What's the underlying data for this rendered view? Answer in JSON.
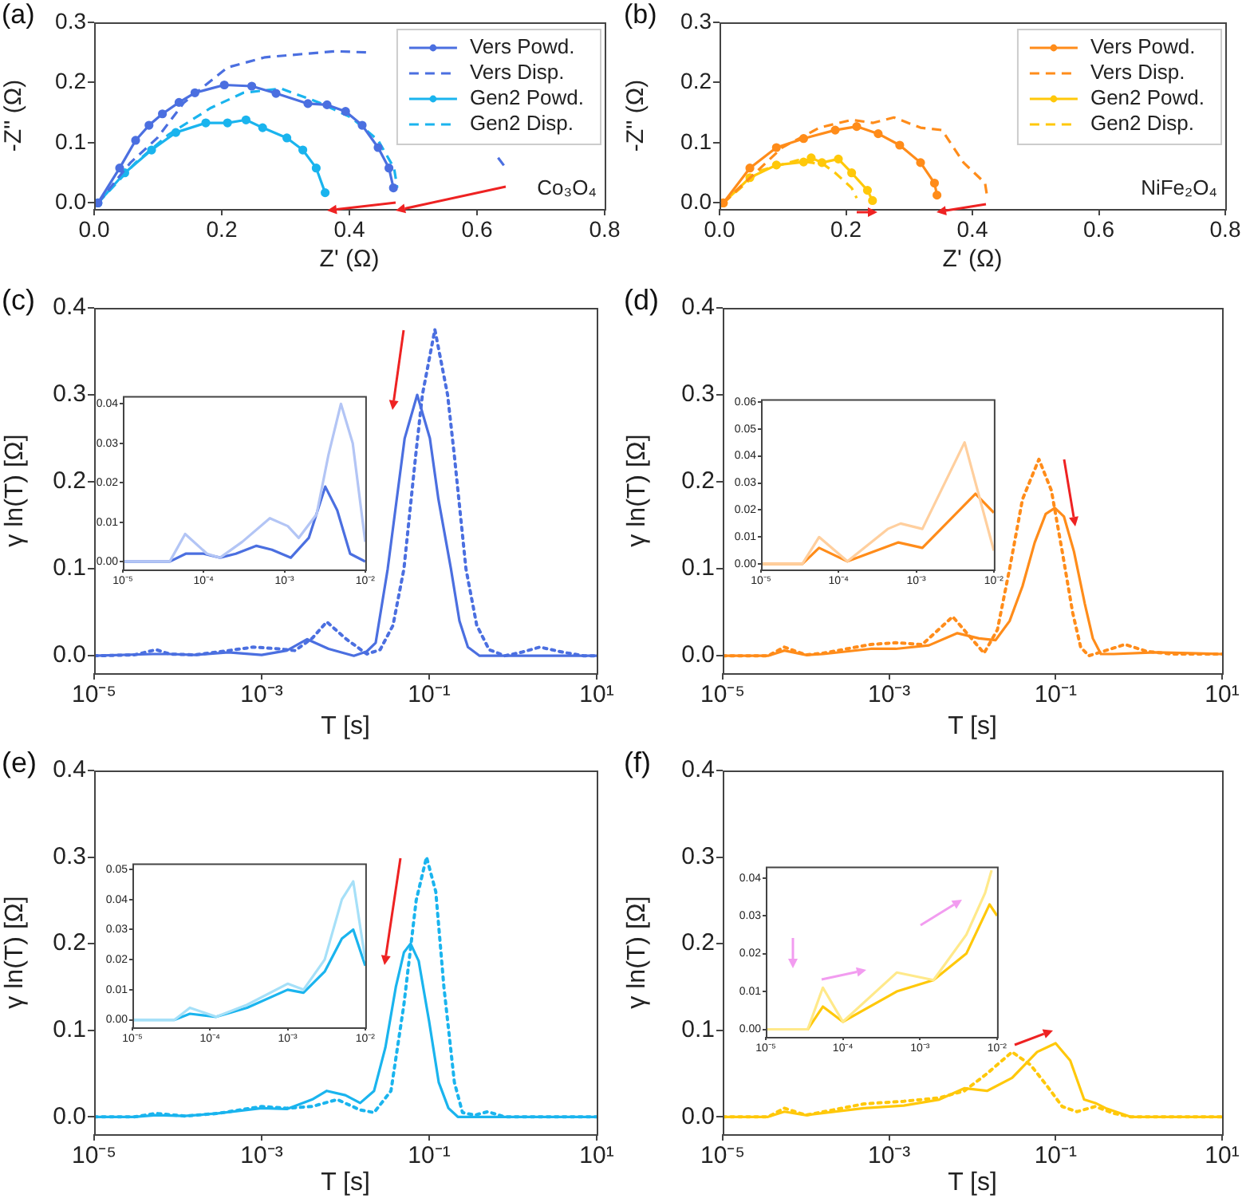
{
  "chart_data": [
    {
      "type": "line",
      "title": "(a)",
      "xlabel": "Z' (Ω)",
      "ylabel": "-Z'' (Ω)",
      "xlim": [
        0,
        0.8
      ],
      "ylim": [
        -0.01,
        0.3
      ],
      "xticks": [
        {
          "value": 0,
          "label": "0.0"
        },
        {
          "value": 0.2,
          "label": "0.2"
        },
        {
          "value": 0.4,
          "label": "0.4"
        },
        {
          "value": 0.6,
          "label": "0.6"
        },
        {
          "value": 0.8,
          "label": "0.8"
        }
      ],
      "yticks": [
        {
          "value": 0,
          "label": "0.0"
        },
        {
          "value": 0.1,
          "label": "0.1"
        },
        {
          "value": 0.2,
          "label": "0.2"
        },
        {
          "value": 0.3,
          "label": "0.3"
        }
      ],
      "grid": false,
      "legend": "top right",
      "annotations": [
        "Co₃O₄"
      ],
      "series": [
        {
          "name": "Vers Powd.",
          "color": "#4b6fe0",
          "marker": "circle",
          "line_style": "solid",
          "x": [
            0.006,
            0.04,
            0.065,
            0.086,
            0.107,
            0.133,
            0.158,
            0.204,
            0.247,
            0.285,
            0.335,
            0.365,
            0.394,
            0.42,
            0.445,
            0.462,
            0.469
          ],
          "values": [
            0,
            0.058,
            0.104,
            0.129,
            0.148,
            0.167,
            0.183,
            0.196,
            0.194,
            0.182,
            0.165,
            0.163,
            0.152,
            0.129,
            0.092,
            0.058,
            0.025
          ]
        },
        {
          "name": "Vers Disp.",
          "color": "#4b6fe0",
          "marker": "none",
          "line_style": "dashed",
          "x": [
            0.006,
            0.057,
            0.099,
            0.141,
            0.209,
            0.268,
            0.378,
            0.428,
            0.487,
            0.546,
            0.633,
            0.648
          ],
          "values": [
            0,
            0.067,
            0.108,
            0.167,
            0.225,
            0.242,
            0.252,
            0.25,
            null,
            null,
            0.075,
            0.054
          ]
        },
        {
          "name": "Gen2 Powd.",
          "color": "#1ab4ee",
          "marker": "circle",
          "line_style": "solid",
          "x": [
            0.006,
            0.048,
            0.09,
            0.128,
            0.175,
            0.209,
            0.238,
            0.264,
            0.302,
            0.327,
            0.348,
            0.362
          ],
          "values": [
            0,
            0.05,
            0.088,
            0.117,
            0.133,
            0.133,
            0.138,
            0.125,
            0.108,
            0.088,
            0.058,
            0.017
          ]
        },
        {
          "name": "Gen2 Disp.",
          "color": "#1ab4ee",
          "marker": "none",
          "line_style": "dashed",
          "x": [
            0.006,
            0.065,
            0.116,
            0.183,
            0.234,
            0.293,
            0.352,
            0.403,
            0.445,
            0.47,
            0.475
          ],
          "values": [
            0,
            0.067,
            0.113,
            0.158,
            0.183,
            0.19,
            0.167,
            0.142,
            0.104,
            0.058,
            0.025
          ]
        }
      ]
    },
    {
      "type": "line",
      "title": "(b)",
      "xlabel": "Z' (Ω)",
      "ylabel": "-Z'' (Ω)",
      "xlim": [
        0,
        0.8
      ],
      "ylim": [
        -0.01,
        0.3
      ],
      "xticks": [
        {
          "value": 0,
          "label": "0.0"
        },
        {
          "value": 0.2,
          "label": "0.2"
        },
        {
          "value": 0.4,
          "label": "0.4"
        },
        {
          "value": 0.6,
          "label": "0.6"
        },
        {
          "value": 0.8,
          "label": "0.8"
        }
      ],
      "yticks": [
        {
          "value": 0,
          "label": "0.0"
        },
        {
          "value": 0.1,
          "label": "0.1"
        },
        {
          "value": 0.2,
          "label": "0.2"
        },
        {
          "value": 0.3,
          "label": "0.3"
        }
      ],
      "grid": false,
      "legend": "top right",
      "annotations": [
        "NiFe₂O₄"
      ],
      "series": [
        {
          "name": "Vers Powd.",
          "color": "#ff8c1a",
          "marker": "circle",
          "line_style": "solid",
          "x": [
            0.006,
            0.048,
            0.09,
            0.133,
            0.183,
            0.217,
            0.251,
            0.285,
            0.318,
            0.34,
            0.344
          ],
          "values": [
            0,
            0.058,
            0.092,
            0.107,
            0.121,
            0.127,
            0.115,
            0.096,
            0.067,
            0.033,
            0.013
          ]
        },
        {
          "name": "Vers Disp.",
          "color": "#ff8c1a",
          "marker": "none",
          "line_style": "dashed",
          "x": [
            0.006,
            0.099,
            0.158,
            0.209,
            0.243,
            0.276,
            0.318,
            0.352,
            0.386,
            0.42,
            0.423
          ],
          "values": [
            0,
            0.092,
            0.125,
            0.138,
            0.133,
            0.142,
            0.125,
            0.121,
            0.067,
            0.033,
            0.013
          ]
        },
        {
          "name": "Gen2 Powd.",
          "color": "#ffc80a",
          "marker": "circle",
          "line_style": "solid",
          "x": [
            0.006,
            0.048,
            0.09,
            0.133,
            0.145,
            0.162,
            0.188,
            0.209,
            0.234,
            0.242
          ],
          "values": [
            0,
            0.042,
            0.063,
            0.068,
            0.075,
            0.067,
            0.073,
            0.05,
            0.021,
            0.004
          ]
        },
        {
          "name": "Gen2 Disp.",
          "color": "#ffc80a",
          "marker": "none",
          "line_style": "dashed",
          "x": [
            0.006,
            0.065,
            0.124,
            0.166,
            0.183,
            0.209,
            0.217
          ],
          "values": [
            0,
            0.054,
            0.071,
            0.063,
            0.05,
            0.025,
            0.008
          ]
        }
      ]
    },
    {
      "type": "line",
      "title": "(c)",
      "xlabel": "T [s]",
      "ylabel": "γ ln(T) [Ω]",
      "log": "x",
      "xlim": [
        1e-05,
        10
      ],
      "ylim": [
        -0.02,
        0.4
      ],
      "xticks": [
        {
          "value": 1e-05,
          "label": "10⁻⁵"
        },
        {
          "value": 0.001,
          "label": "10⁻³"
        },
        {
          "value": 0.1,
          "label": "10⁻¹"
        },
        {
          "value": 10,
          "label": "10¹"
        }
      ],
      "yticks": [
        {
          "value": 0,
          "label": "0.0"
        },
        {
          "value": 0.1,
          "label": "0.1"
        },
        {
          "value": 0.2,
          "label": "0.2"
        },
        {
          "value": 0.3,
          "label": "0.3"
        },
        {
          "value": 0.4,
          "label": "0.4"
        }
      ],
      "grid": false,
      "series": [
        {
          "color": "#4b6fe0",
          "marker": "none",
          "line_style": "solid",
          "x": [
            1e-05,
            5e-05,
            8e-05,
            0.00016,
            0.0004,
            0.001,
            0.002,
            0.0035,
            0.0063,
            0.0126,
            0.018,
            0.023,
            0.032,
            0.041,
            0.051,
            0.072,
            0.102,
            0.129,
            0.182,
            0.23,
            0.29,
            0.4,
            10
          ],
          "values": [
            0,
            0.002,
            0.002,
            0.001,
            0.004,
            0.001,
            0.006,
            0.019,
            0.008,
            0,
            0.005,
            0.015,
            0.1,
            0.18,
            0.25,
            0.3,
            0.25,
            0.18,
            0.1,
            0.04,
            0.01,
            0,
            0
          ]
        },
        {
          "color": "#4b6fe0",
          "marker": "none",
          "line_style": "dotted",
          "x": [
            1e-05,
            3e-05,
            5.5e-05,
            8e-05,
            0.00016,
            0.0004,
            0.0008,
            0.0016,
            0.0025,
            0.004,
            0.006,
            0.01,
            0.018,
            0.026,
            0.037,
            0.05,
            0.069,
            0.083,
            0.117,
            0.166,
            0.2,
            0.275,
            0.37,
            0.52,
            0.8,
            1.26,
            2.1,
            4,
            7,
            10
          ],
          "values": [
            0,
            0.001,
            0.007,
            0.002,
            0.001,
            0.006,
            0.01,
            0.008,
            0.006,
            0.02,
            0.039,
            0.02,
            0.002,
            0.007,
            0.035,
            0.1,
            0.23,
            0.3,
            0.375,
            0.3,
            0.23,
            0.1,
            0.035,
            0.007,
            0,
            0.004,
            0.01,
            0.004,
            0,
            0
          ]
        }
      ]
    },
    {
      "type": "line",
      "log": "x",
      "xlim": [
        1e-05,
        0.01
      ],
      "ylim": [
        -0.002,
        0.042
      ],
      "xticks": [
        {
          "value": 1e-05,
          "label": "10⁻⁵"
        },
        {
          "value": 0.0001,
          "label": "10⁻⁴"
        },
        {
          "value": 0.001,
          "label": "10⁻³"
        },
        {
          "value": 0.01,
          "label": "10⁻²"
        }
      ],
      "yticks": [
        {
          "value": 0,
          "label": "0.00"
        },
        {
          "value": 0.01,
          "label": "0.01"
        },
        {
          "value": 0.02,
          "label": "0.02"
        },
        {
          "value": 0.03,
          "label": "0.03"
        },
        {
          "value": 0.04,
          "label": "0.04"
        }
      ],
      "grid": false,
      "series": [
        {
          "color": "#b3c5f5",
          "marker": "none",
          "line_style": "solid",
          "x": [
            1e-05,
            3.8e-05,
            5.9e-05,
            0.00011,
            0.00016,
            0.0003,
            0.00066,
            0.0011,
            0.0015,
            0.0025,
            0.0035,
            0.005,
            0.007,
            0.01
          ],
          "values": [
            0,
            0,
            0.007,
            0.002,
            0.001,
            0.005,
            0.011,
            0.009,
            0.006,
            0.012,
            0.027,
            0.04,
            0.03,
            0.005
          ]
        },
        {
          "color": "#4b6fe0",
          "marker": "none",
          "line_style": "solid",
          "x": [
            1e-05,
            3.8e-05,
            6e-05,
            0.0001,
            0.00016,
            0.00025,
            0.00045,
            0.0007,
            0.0012,
            0.002,
            0.0032,
            0.0045,
            0.0065,
            0.01
          ],
          "values": [
            0,
            0,
            0.002,
            0.002,
            0.001,
            0.002,
            0.004,
            0.003,
            0.001,
            0.006,
            0.019,
            0.013,
            0.002,
            0
          ]
        }
      ]
    },
    {
      "type": "line",
      "title": "(d)",
      "xlabel": "T [s]",
      "ylabel": "γ ln(T) [Ω]",
      "log": "x",
      "xlim": [
        1e-05,
        10
      ],
      "ylim": [
        -0.02,
        0.4
      ],
      "xticks": [
        {
          "value": 1e-05,
          "label": "10⁻⁵"
        },
        {
          "value": 0.001,
          "label": "10⁻³"
        },
        {
          "value": 0.1,
          "label": "10⁻¹"
        },
        {
          "value": 10,
          "label": "10¹"
        }
      ],
      "yticks": [
        {
          "value": 0,
          "label": "0.0"
        },
        {
          "value": 0.1,
          "label": "0.1"
        },
        {
          "value": 0.2,
          "label": "0.2"
        },
        {
          "value": 0.3,
          "label": "0.3"
        },
        {
          "value": 0.4,
          "label": "0.4"
        }
      ],
      "grid": false,
      "series": [
        {
          "color": "#ff8c1a",
          "marker": "none",
          "line_style": "solid",
          "x": [
            1e-05,
            3.5e-05,
            5.5e-05,
            0.0001,
            0.00016,
            0.0006,
            0.0012,
            0.003,
            0.0066,
            0.012,
            0.019,
            0.028,
            0.04,
            0.056,
            0.076,
            0.098,
            0.126,
            0.166,
            0.224,
            0.28,
            0.35,
            0.5,
            1.6,
            4,
            10
          ],
          "values": [
            0,
            0,
            0.006,
            0.001,
            0.002,
            0.008,
            0.008,
            0.012,
            0.026,
            0.02,
            0.018,
            0.04,
            0.08,
            0.13,
            0.163,
            0.17,
            0.16,
            0.12,
            0.06,
            0.02,
            0.002,
            0.002,
            0.004,
            0.003,
            0.002
          ]
        },
        {
          "color": "#ff8c1a",
          "marker": "none",
          "line_style": "dotted",
          "x": [
            1e-05,
            3.5e-05,
            5.5e-05,
            0.0001,
            0.00016,
            0.0006,
            0.0012,
            0.0025,
            0.0058,
            0.0138,
            0.02,
            0.028,
            0.04,
            0.063,
            0.089,
            0.12,
            0.16,
            0.2,
            0.25,
            0.4,
            0.68,
            1.26,
            2.5,
            10
          ],
          "values": [
            0,
            0,
            0.01,
            0.001,
            0.003,
            0.013,
            0.015,
            0.013,
            0.045,
            0.003,
            0.03,
            0.1,
            0.18,
            0.226,
            0.19,
            0.12,
            0.05,
            0.01,
            0,
            0.006,
            0.013,
            0.005,
            0.002,
            0.002
          ]
        }
      ]
    },
    {
      "type": "line",
      "log": "x",
      "xlim": [
        1e-05,
        0.01
      ],
      "ylim": [
        -0.002,
        0.061
      ],
      "xticks": [
        {
          "value": 1e-05,
          "label": "10⁻⁵"
        },
        {
          "value": 0.0001,
          "label": "10⁻⁴"
        },
        {
          "value": 0.001,
          "label": "10⁻³"
        },
        {
          "value": 0.01,
          "label": "10⁻²"
        }
      ],
      "yticks": [
        {
          "value": 0,
          "label": "0.00"
        },
        {
          "value": 0.01,
          "label": "0.01"
        },
        {
          "value": 0.02,
          "label": "0.02"
        },
        {
          "value": 0.03,
          "label": "0.03"
        },
        {
          "value": 0.04,
          "label": "0.04"
        },
        {
          "value": 0.05,
          "label": "0.05"
        },
        {
          "value": 0.06,
          "label": "0.06"
        }
      ],
      "grid": false,
      "series": [
        {
          "color": "#ffcf9e",
          "marker": "none",
          "line_style": "solid",
          "x": [
            1e-05,
            3.4e-05,
            5.6e-05,
            0.00013,
            0.00043,
            0.00063,
            0.0012,
            0.0042,
            0.01
          ],
          "values": [
            0,
            0,
            0.01,
            0.001,
            0.013,
            0.015,
            0.013,
            0.045,
            0.005
          ]
        },
        {
          "color": "#ff8c1a",
          "marker": "none",
          "line_style": "solid",
          "x": [
            1e-05,
            3.4e-05,
            5.6e-05,
            0.00013,
            0.00059,
            0.0012,
            0.0058,
            0.01
          ],
          "values": [
            0,
            0,
            0.006,
            0.001,
            0.008,
            0.006,
            0.026,
            0.019
          ]
        }
      ]
    },
    {
      "type": "line",
      "title": "(e)",
      "xlabel": "T [s]",
      "ylabel": "γ ln(T) [Ω]",
      "log": "x",
      "xlim": [
        1e-05,
        10
      ],
      "ylim": [
        -0.02,
        0.4
      ],
      "xticks": [
        {
          "value": 1e-05,
          "label": "10⁻⁵"
        },
        {
          "value": 0.001,
          "label": "10⁻³"
        },
        {
          "value": 0.1,
          "label": "10⁻¹"
        },
        {
          "value": 10,
          "label": "10¹"
        }
      ],
      "yticks": [
        {
          "value": 0,
          "label": "0.0"
        },
        {
          "value": 0.1,
          "label": "0.1"
        },
        {
          "value": 0.2,
          "label": "0.2"
        },
        {
          "value": 0.3,
          "label": "0.3"
        },
        {
          "value": 0.4,
          "label": "0.4"
        }
      ],
      "grid": false,
      "series": [
        {
          "color": "#1ab4ee",
          "marker": "none",
          "line_style": "solid",
          "x": [
            1e-05,
            3e-05,
            5.5e-05,
            0.00012,
            0.0003,
            0.001,
            0.002,
            0.004,
            0.006,
            0.01,
            0.015,
            0.022,
            0.03,
            0.04,
            0.05,
            0.06,
            0.075,
            0.1,
            0.13,
            0.17,
            0.22,
            10
          ],
          "values": [
            0,
            0,
            0.002,
            0.001,
            0.004,
            0.01,
            0.009,
            0.02,
            0.03,
            0.025,
            0.016,
            0.03,
            0.08,
            0.15,
            0.19,
            0.2,
            0.18,
            0.11,
            0.04,
            0.01,
            0,
            0
          ]
        },
        {
          "color": "#1ab4ee",
          "marker": "none",
          "line_style": "dotted",
          "x": [
            1e-05,
            3e-05,
            5.5e-05,
            0.00012,
            0.0003,
            0.001,
            0.002,
            0.004,
            0.008,
            0.015,
            0.022,
            0.035,
            0.05,
            0.07,
            0.093,
            0.12,
            0.15,
            0.2,
            0.25,
            0.35,
            0.5,
            0.8,
            10
          ],
          "values": [
            0,
            0,
            0.004,
            0.001,
            0.004,
            0.012,
            0.01,
            0.012,
            0.02,
            0.008,
            0.005,
            0.03,
            0.13,
            0.25,
            0.3,
            0.26,
            0.15,
            0.04,
            0.005,
            0.002,
            0.006,
            0,
            0
          ]
        }
      ]
    },
    {
      "type": "line",
      "log": "x",
      "xlim": [
        1e-05,
        0.01
      ],
      "ylim": [
        -0.0025,
        0.052
      ],
      "xticks": [
        {
          "value": 1e-05,
          "label": "10⁻⁵"
        },
        {
          "value": 0.0001,
          "label": "10⁻⁴"
        },
        {
          "value": 0.001,
          "label": "10⁻³"
        },
        {
          "value": 0.01,
          "label": "10⁻²"
        }
      ],
      "yticks": [
        {
          "value": 0,
          "label": "0.00"
        },
        {
          "value": 0.01,
          "label": "0.01"
        },
        {
          "value": 0.02,
          "label": "0.02"
        },
        {
          "value": 0.03,
          "label": "0.03"
        },
        {
          "value": 0.04,
          "label": "0.04"
        },
        {
          "value": 0.05,
          "label": "0.05"
        }
      ],
      "grid": false,
      "series": [
        {
          "color": "#a6e0f8",
          "marker": "none",
          "line_style": "solid",
          "x": [
            1e-05,
            3.5e-05,
            5.5e-05,
            0.00012,
            0.0003,
            0.001,
            0.0016,
            0.003,
            0.005,
            0.007,
            0.01
          ],
          "values": [
            0,
            0,
            0.004,
            0.001,
            0.005,
            0.012,
            0.01,
            0.02,
            0.04,
            0.046,
            0.02
          ]
        },
        {
          "color": "#1ab4ee",
          "marker": "none",
          "line_style": "solid",
          "x": [
            1e-05,
            3.5e-05,
            5.5e-05,
            0.00012,
            0.0003,
            0.001,
            0.0016,
            0.003,
            0.005,
            0.007,
            0.01
          ],
          "values": [
            0,
            0,
            0.002,
            0.001,
            0.004,
            0.01,
            0.009,
            0.016,
            0.027,
            0.03,
            0.018
          ]
        }
      ]
    },
    {
      "type": "line",
      "title": "(f)",
      "xlabel": "T [s]",
      "ylabel": "γ ln(T) [Ω]",
      "log": "x",
      "xlim": [
        1e-05,
        10
      ],
      "ylim": [
        -0.02,
        0.4
      ],
      "xticks": [
        {
          "value": 1e-05,
          "label": "10⁻⁵"
        },
        {
          "value": 0.001,
          "label": "10⁻³"
        },
        {
          "value": 0.1,
          "label": "10⁻¹"
        },
        {
          "value": 10,
          "label": "10¹"
        }
      ],
      "yticks": [
        {
          "value": 0,
          "label": "0.0"
        },
        {
          "value": 0.1,
          "label": "0.1"
        },
        {
          "value": 0.2,
          "label": "0.2"
        },
        {
          "value": 0.3,
          "label": "0.3"
        },
        {
          "value": 0.4,
          "label": "0.4"
        }
      ],
      "grid": false,
      "series": [
        {
          "color": "#ffc80a",
          "marker": "none",
          "line_style": "solid",
          "x": [
            1e-05,
            3.5e-05,
            5.5e-05,
            0.0001,
            0.0005,
            0.0015,
            0.004,
            0.008,
            0.015,
            0.03,
            0.06,
            0.1,
            0.15,
            0.22,
            0.3,
            0.4,
            0.8,
            10
          ],
          "values": [
            0,
            0,
            0.006,
            0.002,
            0.01,
            0.013,
            0.02,
            0.033,
            0.03,
            0.045,
            0.075,
            0.085,
            0.065,
            0.02,
            0.016,
            0.01,
            0,
            0
          ]
        },
        {
          "color": "#ffc80a",
          "marker": "none",
          "line_style": "dotted",
          "x": [
            1e-05,
            3.5e-05,
            5.5e-05,
            0.0001,
            0.0005,
            0.0015,
            0.004,
            0.008,
            0.015,
            0.03,
            0.05,
            0.08,
            0.12,
            0.18,
            0.3,
            0.5,
            0.8,
            10
          ],
          "values": [
            0,
            0,
            0.01,
            0.002,
            0.015,
            0.018,
            0.022,
            0.03,
            0.05,
            0.075,
            0.06,
            0.035,
            0.012,
            0.006,
            0.012,
            0.004,
            0,
            0
          ]
        }
      ]
    },
    {
      "type": "line",
      "log": "x",
      "xlim": [
        1e-05,
        0.01
      ],
      "ylim": [
        -0.002,
        0.043
      ],
      "xticks": [
        {
          "value": 1e-05,
          "label": "10⁻⁵"
        },
        {
          "value": 0.0001,
          "label": "10⁻⁴"
        },
        {
          "value": 0.001,
          "label": "10⁻³"
        },
        {
          "value": 0.01,
          "label": "10⁻²"
        }
      ],
      "yticks": [
        {
          "value": 0,
          "label": "0.00"
        },
        {
          "value": 0.01,
          "label": "0.01"
        },
        {
          "value": 0.02,
          "label": "0.02"
        },
        {
          "value": 0.03,
          "label": "0.03"
        },
        {
          "value": 0.04,
          "label": "0.04"
        }
      ],
      "grid": false,
      "series": [
        {
          "color": "#ffe98a",
          "marker": "none",
          "line_style": "solid",
          "x": [
            1e-05,
            3.5e-05,
            5.5e-05,
            0.0001,
            0.0005,
            0.0015,
            0.004,
            0.007,
            0.0085
          ],
          "values": [
            0,
            0,
            0.011,
            0.002,
            0.015,
            0.013,
            0.025,
            0.036,
            0.042
          ]
        },
        {
          "color": "#ffc80a",
          "marker": "none",
          "line_style": "solid",
          "x": [
            1e-05,
            3.5e-05,
            5.5e-05,
            0.0001,
            0.0005,
            0.0015,
            0.004,
            0.008,
            0.01
          ],
          "values": [
            0,
            0,
            0.006,
            0.002,
            0.01,
            0.013,
            0.02,
            0.033,
            0.03
          ]
        }
      ]
    }
  ]
}
